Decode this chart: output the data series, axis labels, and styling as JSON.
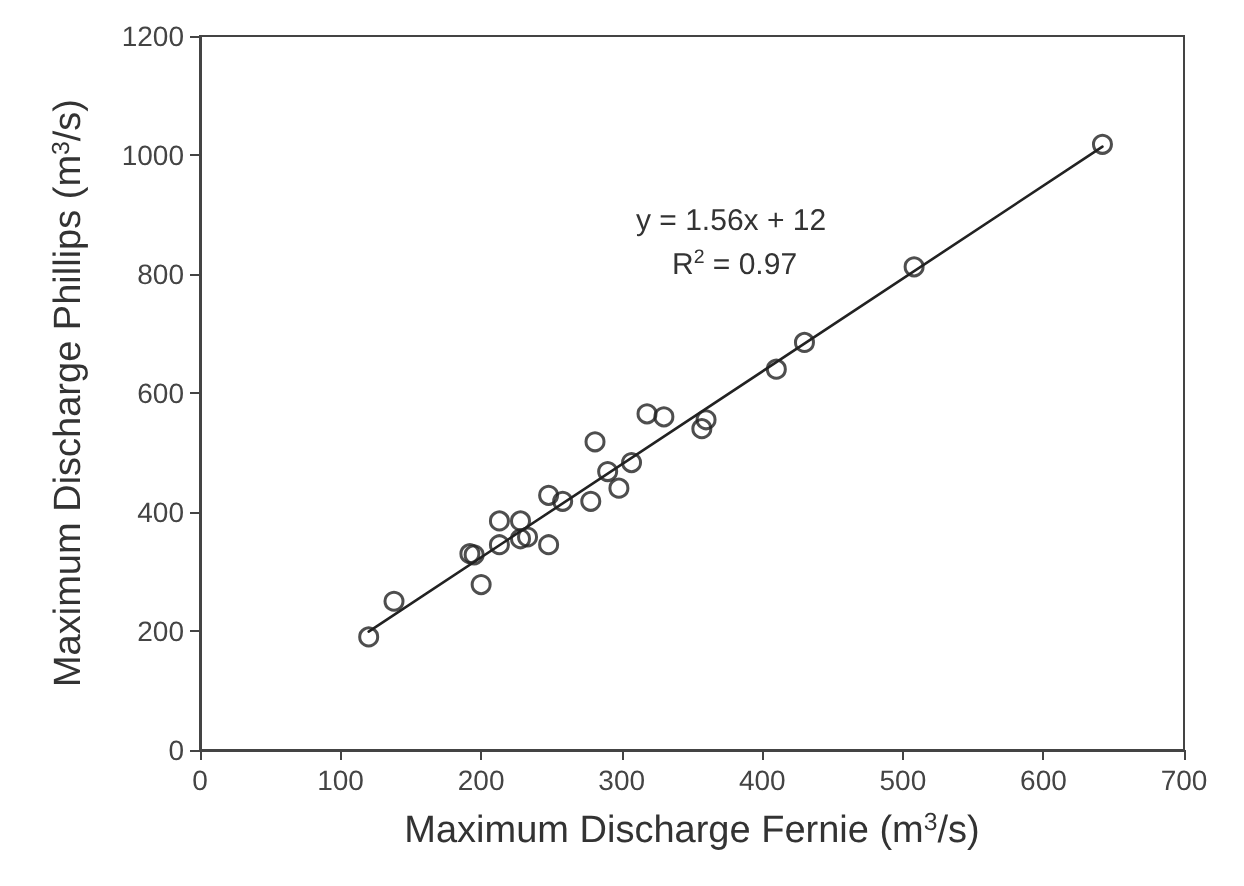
{
  "chart_data": {
    "type": "scatter",
    "xlabel": "Maximum Discharge Fernie (m$^{3}$/s)",
    "ylabel": "Maximum Discharge Phillips (m$^{3}$/s)",
    "annotations": [
      "y = 1.56x + 12",
      "R$^{2}$ = 0.97"
    ],
    "x": [
      120,
      138,
      192,
      195,
      200,
      213,
      213,
      228,
      228,
      233,
      248,
      248,
      258,
      278,
      281,
      290,
      298,
      307,
      318,
      330,
      357,
      360,
      410,
      430,
      508,
      642
    ],
    "series": [
      {
        "color": "#222222",
        "marker": "circle",
        "values": [
          190,
          250,
          330,
          328,
          278,
          385,
          345,
          385,
          355,
          358,
          345,
          428,
          418,
          418,
          518,
          468,
          440,
          483,
          565,
          560,
          540,
          555,
          640,
          685,
          812,
          1018
        ]
      },
      {
        "type": "line",
        "color": "#222222",
        "marker": "none",
        "line_style": "solid",
        "x": [
          120,
          642
        ],
        "values": [
          199,
          1014
        ]
      }
    ],
    "xlim": [
      0,
      700
    ],
    "xticks": [
      0,
      100,
      200,
      300,
      400,
      500,
      600,
      700
    ],
    "ylim": [
      0,
      1200
    ],
    "yticks": [
      0,
      200,
      400,
      600,
      800,
      1000,
      1200
    ]
  }
}
